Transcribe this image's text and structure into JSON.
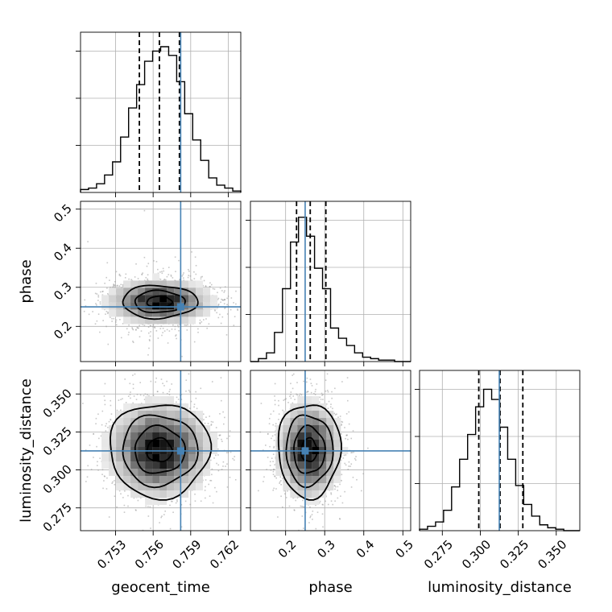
{
  "chart_data": {
    "type": "corner",
    "parameters": [
      {
        "name": "geocent_time",
        "label": "geocent_time",
        "range": [
          0.7502,
          0.763
        ],
        "ticks": [
          0.753,
          0.756,
          0.759,
          0.762
        ],
        "tick_labels": [
          "0.753",
          "0.756",
          "0.759",
          "0.762"
        ],
        "truth": 0.7582,
        "quantiles": [
          0.7549,
          0.7565,
          0.7581
        ],
        "hist_counts": [
          0.02,
          0.03,
          0.06,
          0.12,
          0.21,
          0.38,
          0.58,
          0.74,
          0.9,
          0.97,
          1.0,
          0.94,
          0.76,
          0.54,
          0.36,
          0.22,
          0.1,
          0.05,
          0.03,
          0.01
        ]
      },
      {
        "name": "phase",
        "label": "phase",
        "range": [
          0.11,
          0.52
        ],
        "ticks": [
          0.2,
          0.3,
          0.4,
          0.5
        ],
        "tick_labels": [
          "0.2",
          "0.3",
          "0.4",
          "0.5"
        ],
        "truth": 0.25,
        "quantiles": [
          0.228,
          0.263,
          0.303
        ],
        "hist_counts": [
          0.0,
          0.02,
          0.06,
          0.2,
          0.5,
          0.82,
          0.99,
          0.86,
          0.64,
          0.5,
          0.23,
          0.16,
          0.11,
          0.06,
          0.03,
          0.02,
          0.01,
          0.01,
          0.0,
          0.0
        ]
      },
      {
        "name": "luminosity_distance",
        "label": "luminosity_distance",
        "range": [
          0.26,
          0.3655
        ],
        "ticks": [
          0.275,
          0.3,
          0.325,
          0.35
        ],
        "tick_labels": [
          "0.275",
          "0.300",
          "0.325",
          "0.350"
        ],
        "truth": 0.3125,
        "quantiles": [
          0.299,
          0.313,
          0.328
        ],
        "hist_counts": [
          0.01,
          0.03,
          0.06,
          0.14,
          0.3,
          0.49,
          0.66,
          0.85,
          0.97,
          0.9,
          0.71,
          0.49,
          0.31,
          0.18,
          0.1,
          0.04,
          0.02,
          0.01,
          0.0,
          0.0
        ]
      }
    ],
    "pairs": [
      {
        "x": "geocent_time",
        "y": "phase",
        "center": [
          0.7565,
          0.263
        ],
        "spread": [
          0.002,
          0.028
        ],
        "contour_levels": [
          0.5,
          1.0,
          1.5
        ]
      },
      {
        "x": "geocent_time",
        "y": "luminosity_distance",
        "center": [
          0.7565,
          0.313
        ],
        "spread": [
          0.002,
          0.0155
        ],
        "contour_levels": [
          0.5,
          1.0,
          1.5,
          2.0
        ]
      },
      {
        "x": "phase",
        "y": "luminosity_distance",
        "center": [
          0.26,
          0.313
        ],
        "spread": [
          0.04,
          0.0155
        ],
        "contour_levels": [
          0.5,
          1.0,
          1.5,
          2.0
        ]
      }
    ],
    "grid": true,
    "colors": {
      "truth": "#4682b4",
      "hist": "#000000",
      "contour": "#000000"
    }
  }
}
